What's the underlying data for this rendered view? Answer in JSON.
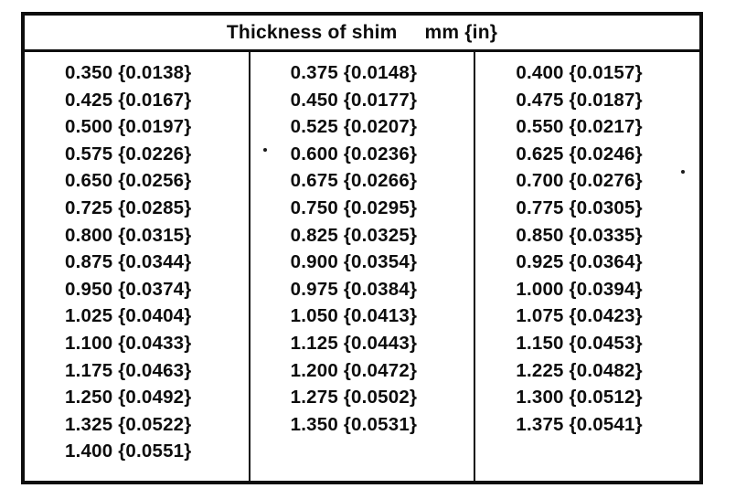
{
  "table": {
    "title": "Thickness of shim",
    "unit": "mm {in}",
    "columns": [
      {
        "rows": [
          "0.350 {0.0138}",
          "0.425 {0.0167}",
          "0.500 {0.0197}",
          "0.575 {0.0226}",
          "0.650 {0.0256}",
          "0.725 {0.0285}",
          "0.800 {0.0315}",
          "0.875 {0.0344}",
          "0.950 {0.0374}",
          "1.025 {0.0404}",
          "1.100 {0.0433}",
          "1.175 {0.0463}",
          "1.250 {0.0492}",
          "1.325 {0.0522}",
          "1.400 {0.0551}"
        ]
      },
      {
        "rows": [
          "0.375 {0.0148}",
          "0.450 {0.0177}",
          "0.525 {0.0207}",
          "0.600 {0.0236}",
          "0.675 {0.0266}",
          "0.750 {0.0295}",
          "0.825 {0.0325}",
          "0.900 {0.0354}",
          "0.975 {0.0384}",
          "1.050 {0.0413}",
          "1.125 {0.0443}",
          "1.200 {0.0472}",
          "1.275 {0.0502}",
          "1.350 {0.0531}"
        ]
      },
      {
        "rows": [
          "0.400 {0.0157}",
          "0.475 {0.0187}",
          "0.550 {0.0217}",
          "0.625 {0.0246}",
          "0.700 {0.0276}",
          "0.775 {0.0305}",
          "0.850 {0.0335}",
          "0.925 {0.0364}",
          "1.000 {0.0394}",
          "1.075 {0.0423}",
          "1.150 {0.0453}",
          "1.225 {0.0482}",
          "1.300 {0.0512}",
          "1.375 {0.0541}"
        ]
      }
    ]
  },
  "colors": {
    "ink": "#0e0e0e",
    "paper": "#ffffff"
  }
}
